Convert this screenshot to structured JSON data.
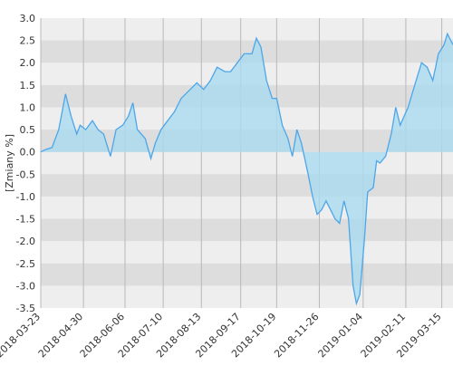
{
  "chart_data": {
    "type": "area",
    "y_label": "[Zmiany %]",
    "x": [
      "2018-03-23",
      "2018-03-27",
      "2018-04-02",
      "2018-04-08",
      "2018-04-14",
      "2018-04-19",
      "2018-04-24",
      "2018-04-27",
      "2018-05-02",
      "2018-05-08",
      "2018-05-13",
      "2018-05-18",
      "2018-05-24",
      "2018-05-29",
      "2018-06-04",
      "2018-06-09",
      "2018-06-13",
      "2018-06-17",
      "2018-06-24",
      "2018-06-29",
      "2018-07-03",
      "2018-07-08",
      "2018-07-14",
      "2018-07-20",
      "2018-07-26",
      "2018-08-03",
      "2018-08-09",
      "2018-08-15",
      "2018-08-21",
      "2018-08-27",
      "2018-09-03",
      "2018-09-08",
      "2018-09-14",
      "2018-09-20",
      "2018-09-27",
      "2018-10-01",
      "2018-10-05",
      "2018-10-10",
      "2018-10-15",
      "2018-10-19",
      "2018-10-24",
      "2018-10-29",
      "2018-11-02",
      "2018-11-06",
      "2018-11-10",
      "2018-11-16",
      "2018-11-20",
      "2018-11-24",
      "2018-11-28",
      "2018-12-02",
      "2018-12-06",
      "2018-12-10",
      "2018-12-14",
      "2018-12-18",
      "2018-12-22",
      "2018-12-26",
      "2018-12-29",
      "2019-01-01",
      "2019-01-05",
      "2019-01-08",
      "2019-01-13",
      "2019-01-16",
      "2019-01-19",
      "2019-01-24",
      "2019-01-29",
      "2019-02-02",
      "2019-02-06",
      "2019-02-13",
      "2019-02-19",
      "2019-02-25",
      "2019-03-02",
      "2019-03-07",
      "2019-03-12",
      "2019-03-17",
      "2019-03-20",
      "2019-03-25"
    ],
    "values": [
      0.0,
      0.05,
      0.1,
      0.5,
      1.3,
      0.8,
      0.4,
      0.6,
      0.5,
      0.7,
      0.5,
      0.4,
      -0.1,
      0.5,
      0.6,
      0.8,
      1.1,
      0.5,
      0.3,
      -0.15,
      0.2,
      0.5,
      0.7,
      0.9,
      1.2,
      1.4,
      1.55,
      1.4,
      1.6,
      1.9,
      1.8,
      1.8,
      2.0,
      2.2,
      2.2,
      2.55,
      2.35,
      1.6,
      1.2,
      1.2,
      0.6,
      0.3,
      -0.1,
      0.5,
      0.2,
      -0.5,
      -1.0,
      -1.4,
      -1.3,
      -1.1,
      -1.3,
      -1.5,
      -1.6,
      -1.1,
      -1.5,
      -3.0,
      -3.4,
      -3.2,
      -2.0,
      -0.9,
      -0.8,
      -0.2,
      -0.25,
      -0.1,
      0.4,
      1.0,
      0.6,
      1.0,
      1.5,
      2.0,
      1.9,
      1.6,
      2.2,
      2.4,
      2.65,
      2.4
    ],
    "line_color": "#4da6e8",
    "fill_color": "#a9dbef",
    "xlim": [
      "2018-03-23",
      "2019-03-25"
    ],
    "xticks": [
      "2018-03-23",
      "2018-04-30",
      "2018-06-06",
      "2018-07-10",
      "2018-08-13",
      "2018-09-17",
      "2018-10-19",
      "2018-11-26",
      "2019-01-04",
      "2019-02-11",
      "2019-03-15"
    ],
    "ylim": [
      -3.5,
      3.0
    ],
    "yticks": [
      {
        "value": 3.0,
        "label": "3.0"
      },
      {
        "value": 2.5,
        "label": "2.5"
      },
      {
        "value": 2.0,
        "label": "2.0"
      },
      {
        "value": 1.5,
        "label": "1.5"
      },
      {
        "value": 1.0,
        "label": "1.0"
      },
      {
        "value": 0.5,
        "label": "0.5"
      },
      {
        "value": 0.0,
        "label": "0.0"
      },
      {
        "value": -0.5,
        "label": "-0.5"
      },
      {
        "value": -1.0,
        "label": "-1.0"
      },
      {
        "value": -1.5,
        "label": "-1.5"
      },
      {
        "value": -2.0,
        "label": "-2.0"
      },
      {
        "value": -2.5,
        "label": "-2.5"
      },
      {
        "value": -3.0,
        "label": "-3.0"
      },
      {
        "value": -3.5,
        "label": "-3.5"
      }
    ],
    "grid": true
  }
}
